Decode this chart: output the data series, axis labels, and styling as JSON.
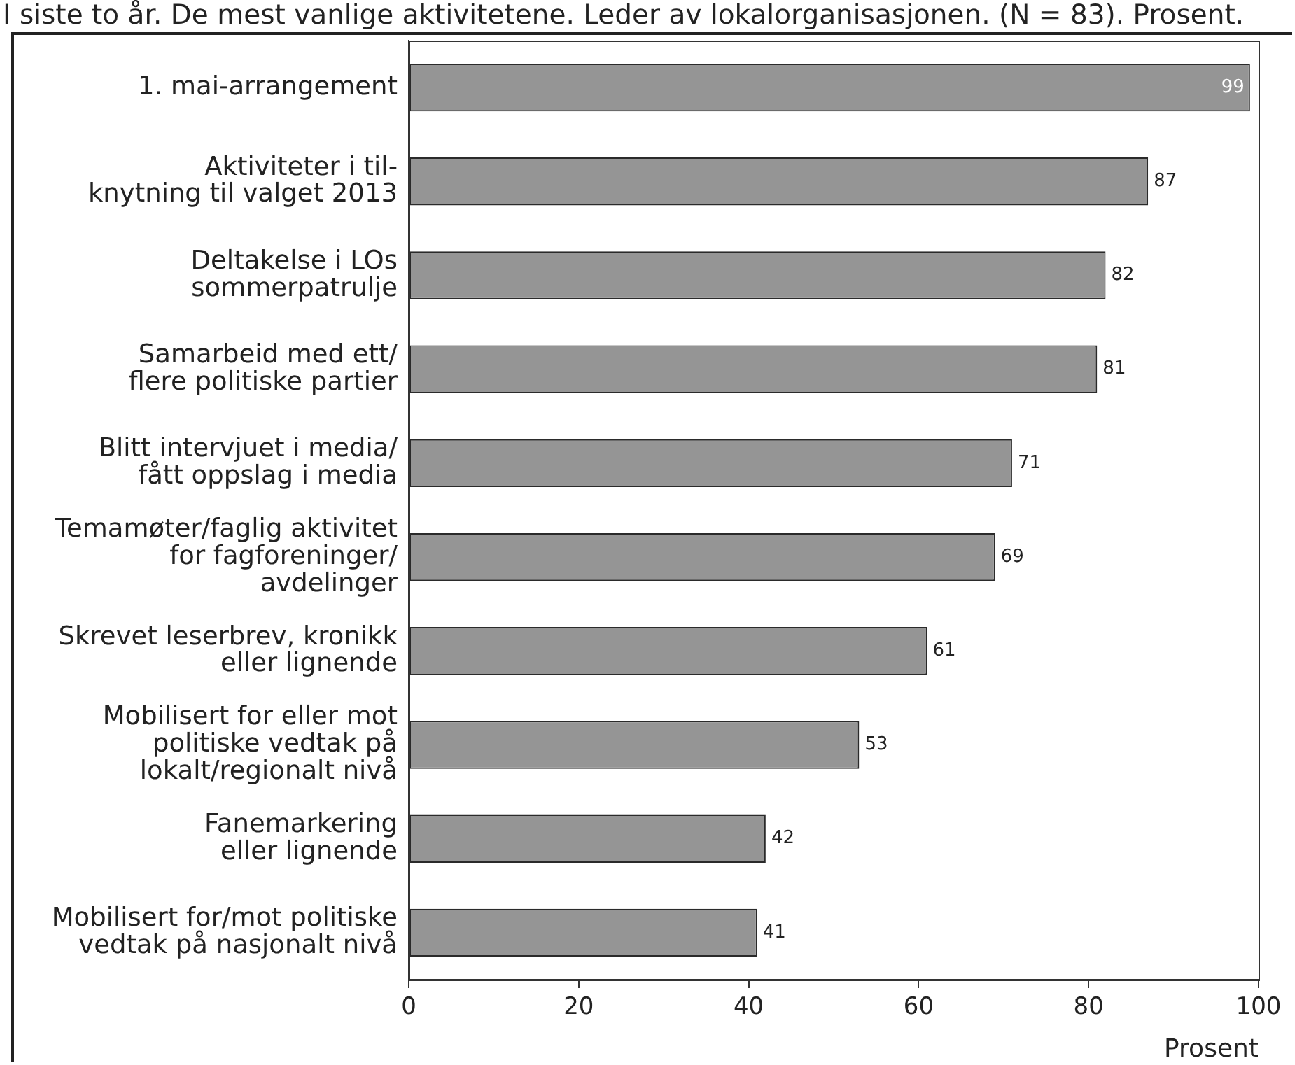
{
  "chart_data": {
    "type": "bar",
    "orientation": "horizontal",
    "title": "I siste to år. De mest vanlige aktivitetene. Leder av lokalorganisasjonen. (N = 83). Prosent.",
    "xlabel": "Prosent",
    "categories": [
      "1. mai-arrangement",
      "Aktiviteter i til-\nknytning til valget 2013",
      "Deltakelse i LOs\nsommerpatrulje",
      "Samarbeid med ett/\nflere politiske partier",
      "Blitt intervjuet i media/\nfått oppslag i media",
      "Temamøter/faglig aktivitet\nfor fagforeninger/\navdelinger",
      "Skrevet leserbrev, kronikk\neller lignende",
      "Mobilisert for eller mot\npolitiske vedtak på\nlokalt/regionalt nivå",
      "Fanemarkering\neller lignende",
      "Mobilisert for/mot politiske\nvedtak på nasjonalt nivå"
    ],
    "values": [
      99,
      87,
      82,
      81,
      71,
      69,
      61,
      53,
      42,
      41
    ],
    "color": "#959595",
    "xlim": [
      0,
      100
    ],
    "xticks": [
      0,
      20,
      40,
      60,
      80,
      100
    ],
    "data_labels": true
  }
}
